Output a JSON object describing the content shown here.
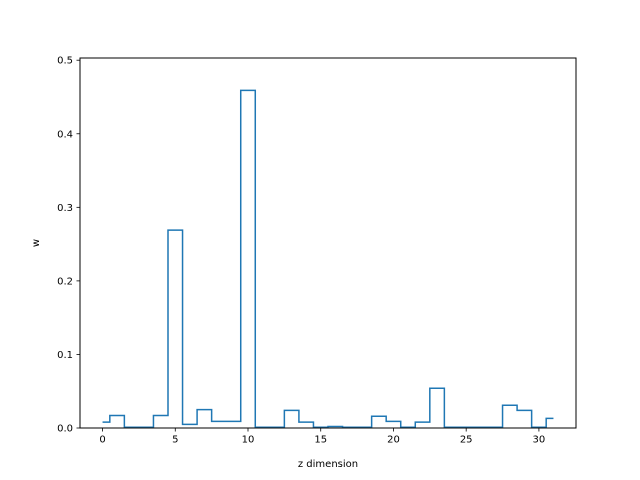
{
  "chart_data": {
    "type": "line",
    "style": "step",
    "xlabel": "z dimension",
    "ylabel": "w",
    "xlim": [
      -1.55,
      32.55
    ],
    "ylim": [
      0,
      0.503
    ],
    "xticks": [
      0,
      5,
      10,
      15,
      20,
      25,
      30
    ],
    "xtick_labels": [
      "0",
      "5",
      "10",
      "15",
      "20",
      "25",
      "30"
    ],
    "yticks": [
      0.0,
      0.1,
      0.2,
      0.3,
      0.4,
      0.5
    ],
    "ytick_labels": [
      "0.0",
      "0.1",
      "0.2",
      "0.3",
      "0.4",
      "0.5"
    ],
    "grid": false,
    "line_color": "#1f77b4",
    "series": [
      {
        "x": [
          0,
          1,
          2,
          3,
          4,
          5,
          6,
          7,
          8,
          9,
          10,
          11,
          12,
          13,
          14,
          15,
          16,
          17,
          18,
          19,
          20,
          21,
          22,
          23,
          24,
          25,
          26,
          27,
          28,
          29,
          30,
          31
        ],
        "values": [
          0.008,
          0.017,
          0.001,
          0.001,
          0.017,
          0.269,
          0.005,
          0.025,
          0.009,
          0.009,
          0.459,
          0.001,
          0.001,
          0.024,
          0.008,
          0.001,
          0.002,
          0.001,
          0.001,
          0.016,
          0.009,
          0.001,
          0.008,
          0.054,
          0.001,
          0.001,
          0.001,
          0.001,
          0.031,
          0.024,
          0.001,
          0.013
        ]
      }
    ]
  }
}
